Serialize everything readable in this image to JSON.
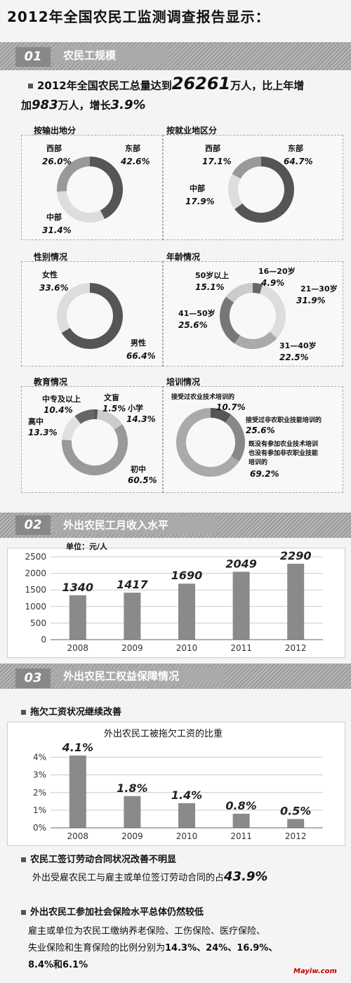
{
  "title": "2012年全国农民工监测调查报告显示：",
  "sec1": {
    "num": "01",
    "label": "农民工规模",
    "line1a": "2012年全国农民工总量达到",
    "line1num": "26261",
    "line1b": "万人，比上年增",
    "line2a": "加",
    "line2num": "983",
    "line2b": "万人，增长",
    "line2pct": "3.9%"
  },
  "donuts": {
    "origin": {
      "title": "按输出地分",
      "west_label": "西部",
      "west_pct": "26.0%",
      "east_label": "东部",
      "east_pct": "42.6%",
      "mid_label": "中部",
      "mid_pct": "31.4%",
      "values": [
        42.6,
        31.4,
        26.0
      ]
    },
    "work": {
      "title": "按就业地区分",
      "west_label": "西部",
      "west_pct": "17.1%",
      "east_label": "东部",
      "east_pct": "64.7%",
      "mid_label": "中部",
      "mid_pct": "17.9%",
      "values": [
        64.7,
        17.9,
        17.1
      ]
    },
    "gender": {
      "title": "性别情况",
      "female_label": "女性",
      "female_pct": "33.6%",
      "male_label": "男性",
      "male_pct": "66.4%",
      "values": [
        66.4,
        33.6
      ]
    },
    "age": {
      "title": "年龄情况",
      "a1_label": "16—20岁",
      "a1_pct": "4.9%",
      "a2_label": "21—30岁",
      "a2_pct": "31.9%",
      "a3_label": "31—40岁",
      "a3_pct": "22.5%",
      "a4_label": "41—50岁",
      "a4_pct": "25.6%",
      "a5_label": "50岁以上",
      "a5_pct": "15.1%",
      "values": [
        4.9,
        31.9,
        22.5,
        25.6,
        15.1
      ]
    },
    "edu": {
      "title": "教育情况",
      "e1_label": "文盲",
      "e1_pct": "1.5%",
      "e2_label": "小学",
      "e2_pct": "14.3%",
      "e3_label": "初中",
      "e3_pct": "60.5%",
      "e4_label": "高中",
      "e4_pct": "13.3%",
      "e5_label": "中专及以上",
      "e5_pct": "10.4%",
      "values": [
        1.5,
        14.3,
        60.5,
        13.3,
        10.4
      ]
    },
    "train": {
      "title": "培训情况",
      "t1_label": "接受过农业技术培训的",
      "t1_pct": "10.7%",
      "t2_label": "接受过非农职业技能培训的",
      "t2_pct": "25.6%",
      "t3_label1": "既没有参加农业技术培训",
      "t3_label2": "也没有参加非农职业技能",
      "t3_label3": "培训的",
      "t3_pct": "69.2%",
      "values": [
        10.7,
        25.6,
        69.2
      ]
    }
  },
  "sec2": {
    "num": "02",
    "label": "外出农民工月收入水平",
    "unit": "单位：元/人"
  },
  "sec3": {
    "num": "03",
    "label": "外出农民工权益保障情况",
    "h1": "拖欠工资状况继续改善",
    "chart_title": "外出农民工被拖欠工资的比重",
    "h2": "农民工签订劳动合同状况改善不明显",
    "p2a": "外出受雇农民工与雇主或单位签订劳动合同的占",
    "p2num": "43.9%",
    "h3": "外出农民工参加社会保险水平总体仍然较低",
    "p3l1": "雇主或单位为农民工缴纳养老保险、工伤保险、医疗保险、",
    "p3l2a": "失业保险和生育保险的比例分别为",
    "p3l2b": "14.3%、24%、16.9%、",
    "p3l3": "8.4%和6.1%"
  },
  "watermark": "Mayiw.com",
  "chart_data": [
    {
      "type": "bar",
      "categories": [
        "2008",
        "2009",
        "2010",
        "2011",
        "2012"
      ],
      "values": [
        1340,
        1417,
        1690,
        2049,
        2290
      ],
      "ylim": [
        0,
        2500
      ],
      "yticks": [
        0,
        500,
        1000,
        1500,
        2000,
        2500
      ],
      "ylabel": "单位：元/人",
      "grid": true
    },
    {
      "type": "bar",
      "title": "外出农民工被拖欠工资的比重",
      "categories": [
        "2008",
        "2009",
        "2010",
        "2011",
        "2012"
      ],
      "values": [
        4.1,
        1.8,
        1.4,
        0.8,
        0.5
      ],
      "labels": [
        "4.1%",
        "1.8%",
        "1.4%",
        "0.8%",
        "0.5%"
      ],
      "ylim": [
        0,
        4.5
      ],
      "yticks": [
        0,
        1,
        2,
        3,
        4
      ],
      "ytick_labels": [
        "0%",
        "1%",
        "2%",
        "3%",
        "4%"
      ],
      "grid": true
    }
  ]
}
